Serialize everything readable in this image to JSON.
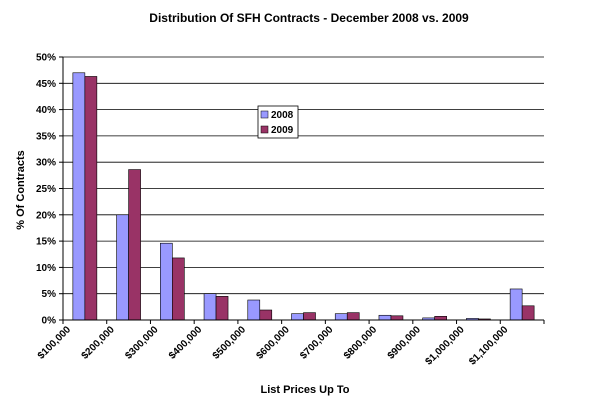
{
  "chart_data": {
    "type": "bar",
    "title": "Distribution Of SFH Contracts - December 2008 vs. 2009",
    "xlabel": "List Prices Up To",
    "ylabel": "% Of Contracts",
    "categories": [
      "$100,000",
      "$200,000",
      "$300,000",
      "$400,000",
      "$500,000",
      "$600,000",
      "$700,000",
      "$800,000",
      "$900,000",
      "$1,000,000",
      "$1,100,000"
    ],
    "series": [
      {
        "name": "2008",
        "color": "#9999ff",
        "values": [
          47.0,
          20.0,
          14.6,
          5.0,
          3.8,
          1.2,
          1.2,
          0.9,
          0.4,
          0.3,
          5.9
        ]
      },
      {
        "name": "2009",
        "color": "#993366",
        "values": [
          46.3,
          28.6,
          11.8,
          4.5,
          1.9,
          1.4,
          1.4,
          0.8,
          0.7,
          0.2,
          2.7
        ]
      }
    ],
    "ylim": [
      0,
      50
    ],
    "yticks": [
      0,
      5,
      10,
      15,
      20,
      25,
      30,
      35,
      40,
      45,
      50
    ],
    "ytick_labels": [
      "0%",
      "5%",
      "10%",
      "15%",
      "20%",
      "25%",
      "30%",
      "35%",
      "40%",
      "45%",
      "50%"
    ],
    "grid": "horizontal",
    "legend_position": "center"
  }
}
